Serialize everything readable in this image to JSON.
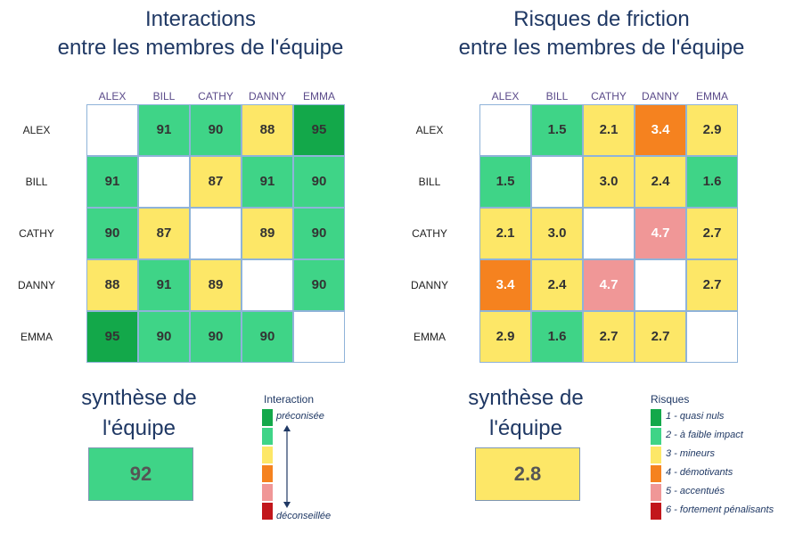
{
  "left": {
    "title_line1": "Interactions",
    "title_line2": "entre les membres de l'équipe",
    "synthesis_line1": "synthèse de",
    "synthesis_line2": "l'équipe",
    "synthesis_value": "92",
    "synthesis_color": "#3fd487",
    "legend_title": "Interaction",
    "legend_top": "préconisée",
    "legend_bottom": "déconseillée"
  },
  "right": {
    "title_line1": "Risques de friction",
    "title_line2": "entre les membres de l'équipe",
    "synthesis_line1": "synthèse de",
    "synthesis_line2": "l'équipe",
    "synthesis_value": "2.8",
    "synthesis_color": "#fde767",
    "legend_title": "Risques",
    "legend_items": [
      "1 - quasi nuls",
      "2 - à faible impact",
      "3 - mineurs",
      "4 - démotivants",
      "5 - accentués",
      "6 - fortement pénalisants"
    ]
  },
  "colors": {
    "level1": "#13a84a",
    "level2": "#3fd487",
    "level3": "#fde767",
    "level4": "#f5821f",
    "level5": "#f09797",
    "level6": "#c2161b"
  },
  "chart_data": [
    {
      "type": "heatmap",
      "title": "Interactions entre les membres de l'équipe",
      "x_labels": [
        "ALEX",
        "BILL",
        "CATHY",
        "DANNY",
        "EMMA"
      ],
      "y_labels": [
        "ALEX",
        "BILL",
        "CATHY",
        "DANNY",
        "EMMA"
      ],
      "values": [
        [
          null,
          91,
          90,
          88,
          95
        ],
        [
          91,
          null,
          87,
          91,
          90
        ],
        [
          90,
          87,
          null,
          89,
          90
        ],
        [
          88,
          91,
          89,
          null,
          90
        ],
        [
          95,
          90,
          90,
          90,
          null
        ]
      ],
      "levels": [
        [
          null,
          2,
          2,
          3,
          1
        ],
        [
          2,
          null,
          3,
          2,
          2
        ],
        [
          2,
          3,
          null,
          3,
          2
        ],
        [
          3,
          2,
          3,
          null,
          2
        ],
        [
          1,
          2,
          2,
          2,
          null
        ]
      ]
    },
    {
      "type": "heatmap",
      "title": "Risques de friction entre les membres de l'équipe",
      "x_labels": [
        "ALEX",
        "BILL",
        "CATHY",
        "DANNY",
        "EMMA"
      ],
      "y_labels": [
        "ALEX",
        "BILL",
        "CATHY",
        "DANNY",
        "EMMA"
      ],
      "values": [
        [
          null,
          "1.5",
          "2.1",
          "3.4",
          "2.9"
        ],
        [
          "1.5",
          null,
          "3.0",
          "2.4",
          "1.6"
        ],
        [
          "2.1",
          "3.0",
          null,
          "4.7",
          "2.7"
        ],
        [
          "3.4",
          "2.4",
          "4.7",
          null,
          "2.7"
        ],
        [
          "2.9",
          "1.6",
          "2.7",
          "2.7",
          null
        ]
      ],
      "levels": [
        [
          null,
          2,
          3,
          4,
          3
        ],
        [
          2,
          null,
          3,
          3,
          2
        ],
        [
          3,
          3,
          null,
          5,
          3
        ],
        [
          4,
          3,
          5,
          null,
          3
        ],
        [
          3,
          2,
          3,
          3,
          null
        ]
      ]
    }
  ]
}
